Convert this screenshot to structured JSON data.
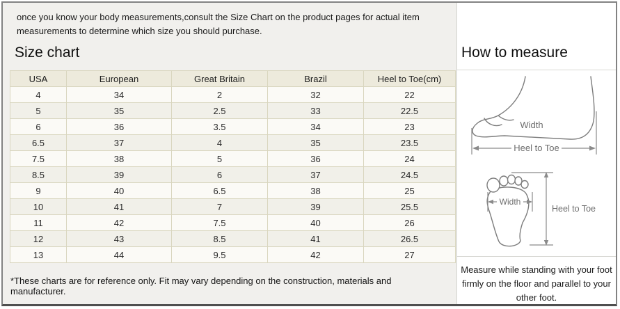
{
  "intro": {
    "text": "once you know your body measurements,consult the Size Chart on the product pages for actual item measurements to determine which size you should purchase."
  },
  "left": {
    "title": "Size chart",
    "footnote": "*These charts are for reference only. Fit may vary depending on the construction, materials and manufacturer."
  },
  "table": {
    "headers": [
      "USA",
      "European",
      "Great Britain",
      "Brazil",
      "Heel to Toe(cm)"
    ],
    "rows": [
      [
        "4",
        "34",
        "2",
        "32",
        "22"
      ],
      [
        "5",
        "35",
        "2.5",
        "33",
        "22.5"
      ],
      [
        "6",
        "36",
        "3.5",
        "34",
        "23"
      ],
      [
        "6.5",
        "37",
        "4",
        "35",
        "23.5"
      ],
      [
        "7.5",
        "38",
        "5",
        "36",
        "24"
      ],
      [
        "8.5",
        "39",
        "6",
        "37",
        "24.5"
      ],
      [
        "9",
        "40",
        "6.5",
        "38",
        "25"
      ],
      [
        "10",
        "41",
        "7",
        "39",
        "25.5"
      ],
      [
        "11",
        "42",
        "7.5",
        "40",
        "26"
      ],
      [
        "12",
        "43",
        "8.5",
        "41",
        "26.5"
      ],
      [
        "13",
        "44",
        "9.5",
        "42",
        "27"
      ]
    ]
  },
  "right": {
    "title": "How to measure",
    "side_view": {
      "width_label": "Width",
      "length_label": "Heel to Toe"
    },
    "bottom_view": {
      "width_label": "Width",
      "length_label": "Heel to Toe"
    },
    "note": "Measure while standing with your foot firmly on the floor and parallel to your other foot."
  },
  "colors": {
    "left_panel_bg": "#f1f0ed",
    "table_border": "#d9d6bf",
    "table_header_bg": "#edeadc",
    "row_alt_bg": "#f1f0e9",
    "frame_border": "#828282",
    "diagram_stroke": "#7d7d7d"
  }
}
